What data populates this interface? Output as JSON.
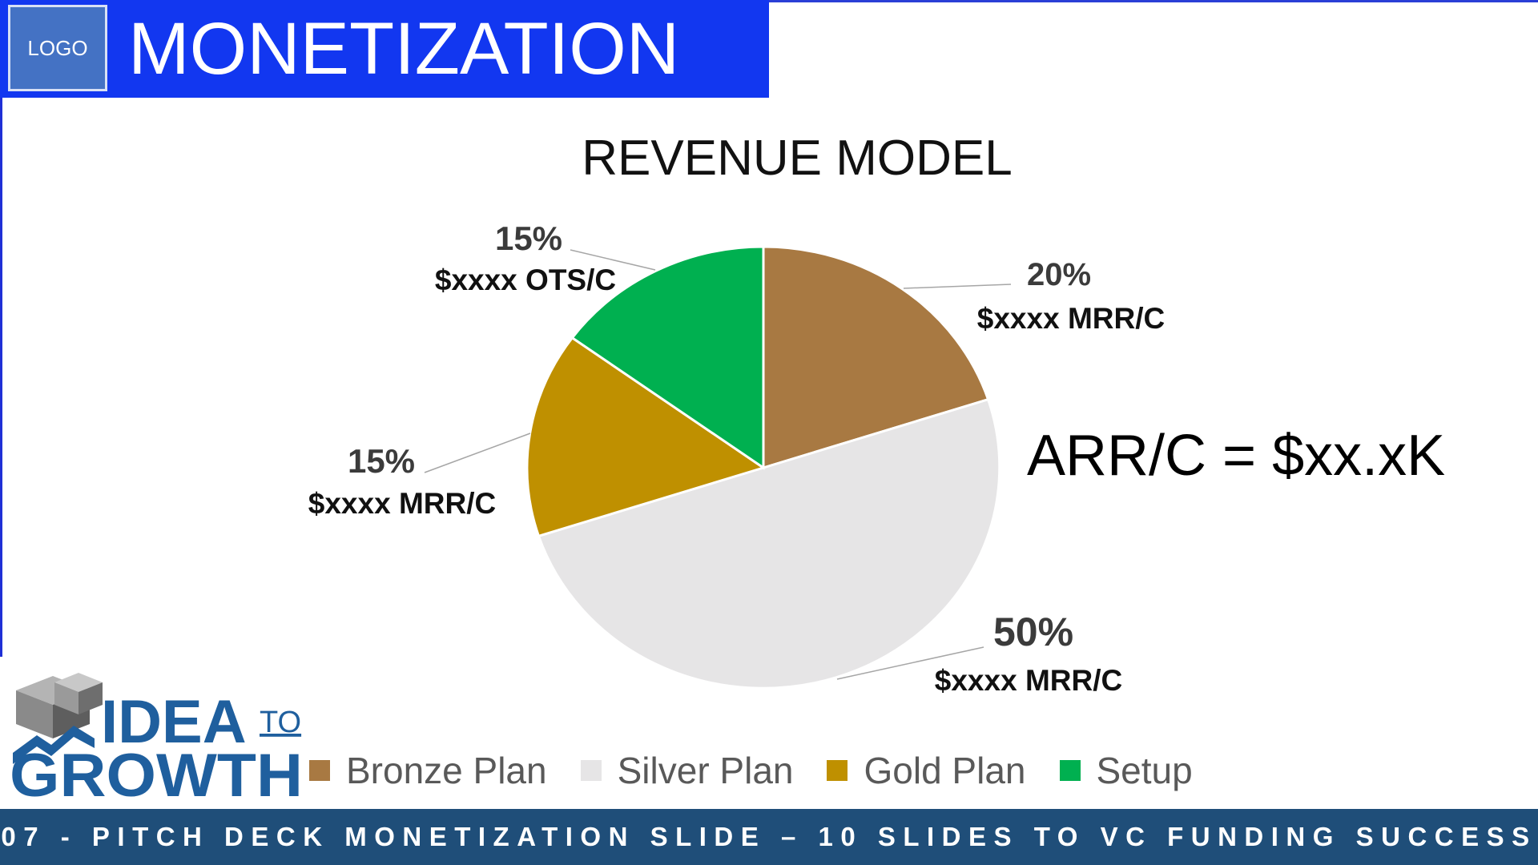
{
  "header": {
    "logo_label": "LOGO",
    "title": "MONETIZATION",
    "bar_color": "#1237f0"
  },
  "chart_data": {
    "type": "pie",
    "title": "REVENUE MODEL",
    "categories": [
      "Bronze Plan",
      "Silver Plan",
      "Gold Plan",
      "Setup"
    ],
    "values": [
      20,
      50,
      15,
      15
    ],
    "colors": [
      "#a87942",
      "#e6e5e6",
      "#bf9000",
      "#00b050"
    ],
    "slice_labels": [
      {
        "percent": "20%",
        "value": "$xxxx MRR/C"
      },
      {
        "percent": "50%",
        "value": "$xxxx MRR/C"
      },
      {
        "percent": "15%",
        "value": "$xxxx MRR/C"
      },
      {
        "percent": "15%",
        "value": "$xxxx OTS/C"
      }
    ],
    "legend_position": "bottom",
    "annotation": "ARR/C = $xx.xK"
  },
  "brand": {
    "line1": "IDEA",
    "line1_small": "TO",
    "line2": "GROWTH"
  },
  "footer": {
    "text": "07 - PITCH DECK MONETIZATION SLIDE – 10 SLIDES TO VC FUNDING SUCCESS",
    "bar_color": "#1f4e79"
  }
}
